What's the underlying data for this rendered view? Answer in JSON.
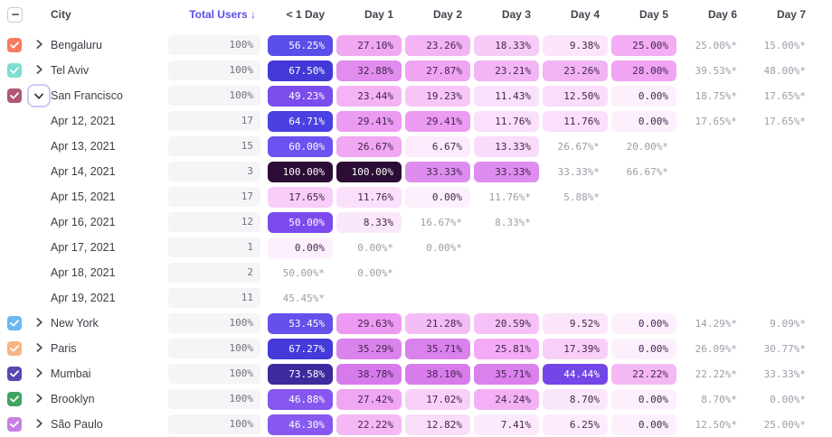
{
  "palette": {
    "accent": "#5B4FE8",
    "header_text": "#43434E",
    "label_text": "#3D3D47",
    "pill_bg": "#F5F5F7",
    "pill_text": "#71717C",
    "approx_text": "#9D9DA8",
    "cell_text_dark": "#43264E",
    "cell_text_light": "#FFFFFF",
    "checkbox_border": "#C9C9D2",
    "chevron_ring": "#CFC8F7",
    "chevron_color": "#4A4A55"
  },
  "header": {
    "select_all_state": "indeterminate",
    "city": "City",
    "total_users": "Total Users ↓",
    "days": [
      "< 1 Day",
      "Day 1",
      "Day 2",
      "Day 3",
      "Day 4",
      "Day 5",
      "Day 6",
      "Day 7"
    ]
  },
  "rows": [
    {
      "type": "city",
      "label": "Bengaluru",
      "checkbox": "#F87B60",
      "expanded": false,
      "total": "100%",
      "cells": [
        {
          "v": "56.25%",
          "bg": "#5A4EE8",
          "fg": "#FFFFFF"
        },
        {
          "v": "27.10%",
          "bg": "#F1A8F3"
        },
        {
          "v": "23.26%",
          "bg": "#F3B4F5"
        },
        {
          "v": "18.33%",
          "bg": "#F7CBF8"
        },
        {
          "v": "9.38%",
          "bg": "#FBE6FB"
        },
        {
          "v": "25.00%",
          "bg": "#F2ADF4"
        },
        {
          "v": "25.00%*"
        },
        {
          "v": "15.00%*"
        }
      ]
    },
    {
      "type": "city",
      "label": "Tel Aviv",
      "checkbox": "#7EDED2",
      "expanded": false,
      "total": "100%",
      "cells": [
        {
          "v": "67.50%",
          "bg": "#4339D8",
          "fg": "#FFFFFF"
        },
        {
          "v": "32.88%",
          "bg": "#E28CEF"
        },
        {
          "v": "27.87%",
          "bg": "#F0A5F3"
        },
        {
          "v": "23.21%",
          "bg": "#F3B5F5"
        },
        {
          "v": "23.26%",
          "bg": "#F3B4F5"
        },
        {
          "v": "28.00%",
          "bg": "#F0A4F3"
        },
        {
          "v": "39.53%*"
        },
        {
          "v": "48.00%*"
        }
      ]
    },
    {
      "type": "city",
      "label": "San Francisco",
      "checkbox": "#B05873",
      "expanded": true,
      "total": "100%",
      "cells": [
        {
          "v": "49.23%",
          "bg": "#7A4DEC",
          "fg": "#FFFFFF"
        },
        {
          "v": "23.44%",
          "bg": "#F3B3F5"
        },
        {
          "v": "19.23%",
          "bg": "#F7C6F7"
        },
        {
          "v": "11.43%",
          "bg": "#FAE1FB"
        },
        {
          "v": "12.50%",
          "bg": "#F9DDFA"
        },
        {
          "v": "0.00%",
          "bg": "#FDF0FD"
        },
        {
          "v": "18.75%*"
        },
        {
          "v": "17.65%*"
        }
      ]
    },
    {
      "type": "date",
      "label": "Apr 12, 2021",
      "total": "17",
      "cells": [
        {
          "v": "64.71%",
          "bg": "#4B40E0",
          "fg": "#FFFFFF"
        },
        {
          "v": "29.41%",
          "bg": "#EC9BF2"
        },
        {
          "v": "29.41%",
          "bg": "#EC9BF2"
        },
        {
          "v": "11.76%",
          "bg": "#FAE0FB"
        },
        {
          "v": "11.76%",
          "bg": "#FAE0FB"
        },
        {
          "v": "0.00%",
          "bg": "#FDF0FD"
        },
        {
          "v": "17.65%*"
        },
        {
          "v": "17.65%*"
        }
      ]
    },
    {
      "type": "date",
      "label": "Apr 13, 2021",
      "total": "15",
      "cells": [
        {
          "v": "60.00%",
          "bg": "#6C52F0",
          "fg": "#FFFFFF"
        },
        {
          "v": "26.67%",
          "bg": "#F1A7F3"
        },
        {
          "v": "6.67%",
          "bg": "#FCEBFC"
        },
        {
          "v": "13.33%",
          "bg": "#F9DBFA"
        },
        {
          "v": "26.67%*"
        },
        {
          "v": "20.00%*"
        },
        {
          "v": ""
        },
        {
          "v": ""
        }
      ]
    },
    {
      "type": "date",
      "label": "Apr 14, 2021",
      "total": "3",
      "cells": [
        {
          "v": "100.00%",
          "bg": "#2C0C34",
          "fg": "#FFFFFF"
        },
        {
          "v": "100.00%",
          "bg": "#2C0C34",
          "fg": "#FFFFFF"
        },
        {
          "v": "33.33%",
          "bg": "#DE8DEE"
        },
        {
          "v": "33.33%",
          "bg": "#DE8DEE"
        },
        {
          "v": "33.33%*"
        },
        {
          "v": "66.67%*"
        },
        {
          "v": ""
        },
        {
          "v": ""
        }
      ]
    },
    {
      "type": "date",
      "label": "Apr 15, 2021",
      "total": "17",
      "cells": [
        {
          "v": "17.65%",
          "bg": "#F8CDF8"
        },
        {
          "v": "11.76%",
          "bg": "#FAE0FB"
        },
        {
          "v": "0.00%",
          "bg": "#FDF0FD"
        },
        {
          "v": "11.76%*"
        },
        {
          "v": "5.88%*"
        },
        {
          "v": ""
        },
        {
          "v": ""
        },
        {
          "v": ""
        }
      ]
    },
    {
      "type": "date",
      "label": "Apr 16, 2021",
      "total": "12",
      "cells": [
        {
          "v": "50.00%",
          "bg": "#7C4BEE",
          "fg": "#FFFFFF"
        },
        {
          "v": "8.33%",
          "bg": "#FBE7FC"
        },
        {
          "v": "16.67%*"
        },
        {
          "v": "8.33%*"
        },
        {
          "v": ""
        },
        {
          "v": ""
        },
        {
          "v": ""
        },
        {
          "v": ""
        }
      ]
    },
    {
      "type": "date",
      "label": "Apr 17, 2021",
      "total": "1",
      "cells": [
        {
          "v": "0.00%",
          "bg": "#FDF0FD"
        },
        {
          "v": "0.00%*"
        },
        {
          "v": "0.00%*"
        },
        {
          "v": ""
        },
        {
          "v": ""
        },
        {
          "v": ""
        },
        {
          "v": ""
        },
        {
          "v": ""
        }
      ]
    },
    {
      "type": "date",
      "label": "Apr 18, 2021",
      "total": "2",
      "cells": [
        {
          "v": "50.00%*"
        },
        {
          "v": "0.00%*"
        },
        {
          "v": ""
        },
        {
          "v": ""
        },
        {
          "v": ""
        },
        {
          "v": ""
        },
        {
          "v": ""
        },
        {
          "v": ""
        }
      ]
    },
    {
      "type": "date",
      "label": "Apr 19, 2021",
      "total": "11",
      "cells": [
        {
          "v": "45.45%*"
        },
        {
          "v": ""
        },
        {
          "v": ""
        },
        {
          "v": ""
        },
        {
          "v": ""
        },
        {
          "v": ""
        },
        {
          "v": ""
        },
        {
          "v": ""
        }
      ]
    },
    {
      "type": "city",
      "label": "New York",
      "checkbox": "#69B9F0",
      "expanded": false,
      "total": "100%",
      "cells": [
        {
          "v": "53.45%",
          "bg": "#6450EA",
          "fg": "#FFFFFF"
        },
        {
          "v": "29.63%",
          "bg": "#EC9AF2"
        },
        {
          "v": "21.28%",
          "bg": "#F5BDF6"
        },
        {
          "v": "20.59%",
          "bg": "#F6C1F7"
        },
        {
          "v": "9.52%",
          "bg": "#FBE6FB"
        },
        {
          "v": "0.00%",
          "bg": "#FDF0FD"
        },
        {
          "v": "14.29%*"
        },
        {
          "v": "9.09%*"
        }
      ]
    },
    {
      "type": "city",
      "label": "Paris",
      "checkbox": "#F8B584",
      "expanded": false,
      "total": "100%",
      "cells": [
        {
          "v": "67.27%",
          "bg": "#4439D9",
          "fg": "#FFFFFF"
        },
        {
          "v": "35.29%",
          "bg": "#DB83ED"
        },
        {
          "v": "35.71%",
          "bg": "#DA81ED"
        },
        {
          "v": "25.81%",
          "bg": "#F2ABF4"
        },
        {
          "v": "17.39%",
          "bg": "#F8CFF8"
        },
        {
          "v": "0.00%",
          "bg": "#FDF0FD"
        },
        {
          "v": "26.09%*"
        },
        {
          "v": "30.77%*"
        }
      ]
    },
    {
      "type": "city",
      "label": "Mumbai",
      "checkbox": "#5947B0",
      "expanded": false,
      "total": "100%",
      "cells": [
        {
          "v": "73.58%",
          "bg": "#3D2A9D",
          "fg": "#FFFFFF"
        },
        {
          "v": "38.78%",
          "bg": "#D77AEC"
        },
        {
          "v": "38.10%",
          "bg": "#D87CEC"
        },
        {
          "v": "35.71%",
          "bg": "#DA81ED"
        },
        {
          "v": "44.44%",
          "bg": "#7346E8",
          "fg": "#FFFFFF"
        },
        {
          "v": "22.22%",
          "bg": "#F4B9F5"
        },
        {
          "v": "22.22%*"
        },
        {
          "v": "33.33%*"
        }
      ]
    },
    {
      "type": "city",
      "label": "Brooklyn",
      "checkbox": "#3FA463",
      "expanded": false,
      "total": "100%",
      "cells": [
        {
          "v": "46.88%",
          "bg": "#8556F0",
          "fg": "#FFFFFF"
        },
        {
          "v": "27.42%",
          "bg": "#F0A6F3"
        },
        {
          "v": "17.02%",
          "bg": "#F8D0F8"
        },
        {
          "v": "24.24%",
          "bg": "#F3B0F4"
        },
        {
          "v": "8.70%",
          "bg": "#FBE7FC"
        },
        {
          "v": "0.00%",
          "bg": "#FDF0FD"
        },
        {
          "v": "8.70%*"
        },
        {
          "v": "0.00%*"
        }
      ]
    },
    {
      "type": "city",
      "label": "São Paulo",
      "checkbox": "#C77FE2",
      "expanded": false,
      "total": "100%",
      "cells": [
        {
          "v": "46.30%",
          "bg": "#8759F0",
          "fg": "#FFFFFF"
        },
        {
          "v": "22.22%",
          "bg": "#F4B9F5"
        },
        {
          "v": "12.82%",
          "bg": "#F9DEFA"
        },
        {
          "v": "7.41%",
          "bg": "#FCEAFC"
        },
        {
          "v": "6.25%",
          "bg": "#FCECFC"
        },
        {
          "v": "0.00%",
          "bg": "#FDF0FD"
        },
        {
          "v": "12.50%*"
        },
        {
          "v": "25.00%*"
        }
      ]
    }
  ]
}
